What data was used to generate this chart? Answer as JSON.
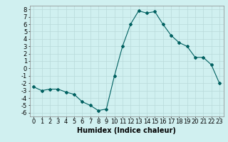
{
  "x": [
    0,
    1,
    2,
    3,
    4,
    5,
    6,
    7,
    8,
    9,
    10,
    11,
    12,
    13,
    14,
    15,
    16,
    17,
    18,
    19,
    20,
    21,
    22,
    23
  ],
  "y": [
    -2.5,
    -3.0,
    -2.8,
    -2.8,
    -3.2,
    -3.5,
    -4.5,
    -5.0,
    -5.7,
    -5.5,
    -1.0,
    3.0,
    6.0,
    7.8,
    7.5,
    7.7,
    6.0,
    4.5,
    3.5,
    3.0,
    1.5,
    1.5,
    0.5,
    -2.0
  ],
  "line_color": "#006060",
  "marker": "D",
  "marker_size": 2,
  "bg_color": "#d0f0f0",
  "grid_color": "#b8dada",
  "xlabel": "Humidex (Indice chaleur)",
  "xlabel_fontsize": 7,
  "tick_fontsize": 6,
  "xlim": [
    -0.5,
    23.5
  ],
  "ylim": [
    -6.5,
    8.5
  ],
  "yticks": [
    8,
    7,
    6,
    5,
    4,
    3,
    2,
    1,
    0,
    -1,
    -2,
    -3,
    -4,
    -5,
    -6
  ],
  "xticks": [
    0,
    1,
    2,
    3,
    4,
    5,
    6,
    7,
    8,
    9,
    10,
    11,
    12,
    13,
    14,
    15,
    16,
    17,
    18,
    19,
    20,
    21,
    22,
    23
  ]
}
